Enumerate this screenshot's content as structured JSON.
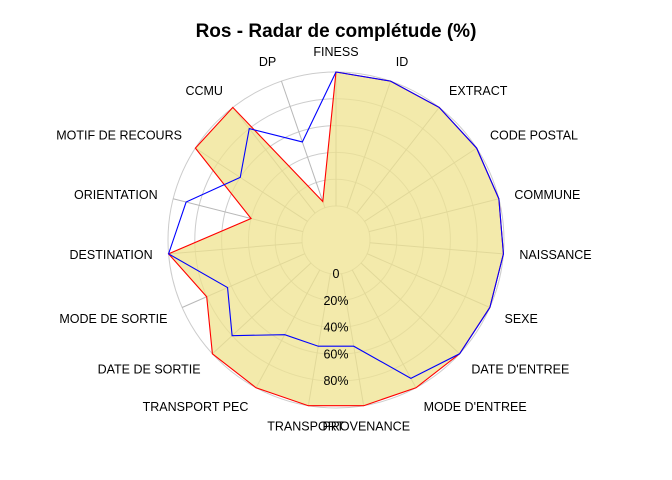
{
  "chart_data": {
    "type": "radar",
    "title": "Ros - Radar de complétude (%)",
    "categories": [
      "FINESS",
      "ID",
      "EXTRACT",
      "CODE POSTAL",
      "COMMUNE",
      "NAISSANCE",
      "SEXE",
      "DATE D'ENTREE",
      "MODE D'ENTREE",
      "PROVENANCE",
      "TRANSPORT",
      "TRANSPORT PEC",
      "DATE DE SORTIE",
      "MODE DE SORTIE",
      "DESTINATION",
      "ORIENTATION",
      "MOTIF DE RECOURS",
      "CCMU",
      "DP"
    ],
    "rlim": [
      0,
      100
    ],
    "radial_ticks": [
      0,
      20,
      40,
      60,
      80
    ],
    "radial_tick_labels": [
      "0",
      "20%",
      "40%",
      "60%",
      "80%"
    ],
    "series": [
      {
        "color": "#ff0000",
        "filled": true,
        "values": [
          100,
          100,
          100,
          100,
          100,
          100,
          100,
          100,
          100,
          100,
          100,
          100,
          100,
          80,
          100,
          40,
          100,
          100,
          5
        ]
      },
      {
        "color": "#0000ff",
        "filled": false,
        "values": [
          100,
          100,
          100,
          100,
          100,
          100,
          100,
          100,
          92,
          55,
          55,
          55,
          80,
          63,
          100,
          90,
          60,
          80,
          52
        ]
      }
    ],
    "grid": true
  }
}
